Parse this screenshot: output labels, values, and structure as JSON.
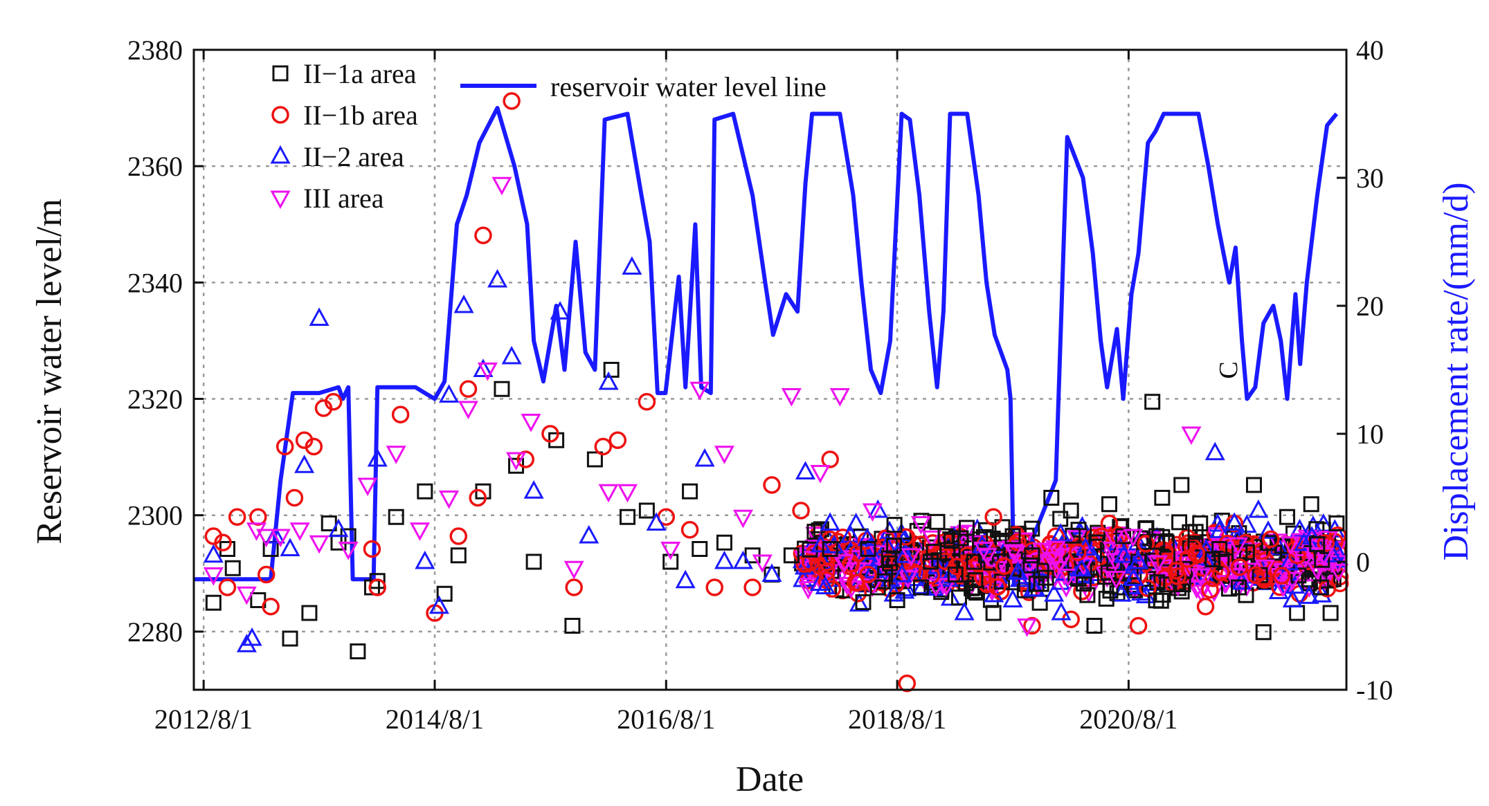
{
  "chart_data": {
    "type": "scatter+line",
    "xlabel": "Date",
    "ylabel_left": "Reservoir water level/m",
    "ylabel_right": "Displacement rate/(mm/d)",
    "annotation": "C",
    "x_axis": {
      "start": "2012-07-01",
      "end": "2022-06-20",
      "ticks": [
        "2012-08-01",
        "2014-08-01",
        "2016-08-01",
        "2018-08-01",
        "2020-08-01"
      ],
      "tick_labels": [
        "2012/8/1",
        "2014/8/1",
        "2016/8/1",
        "2018/8/1",
        "2020/8/1"
      ]
    },
    "y_left": {
      "min": 2270,
      "max": 2380,
      "ticks": [
        2280,
        2300,
        2320,
        2340,
        2360,
        2380
      ]
    },
    "y_right": {
      "min": -10,
      "max": 40,
      "ticks": [
        -10,
        0,
        10,
        20,
        30,
        40
      ]
    },
    "grid": true,
    "legend_position": "top-left",
    "line_series": {
      "name": "reservoir water level line",
      "color": "#1a1aff",
      "axis": "left",
      "points": [
        [
          "2012-07-01",
          2289
        ],
        [
          "2013-03-01",
          2289
        ],
        [
          "2013-04-01",
          2306
        ],
        [
          "2013-05-10",
          2321
        ],
        [
          "2013-08-01",
          2321
        ],
        [
          "2013-10-01",
          2322
        ],
        [
          "2013-10-15",
          2320
        ],
        [
          "2013-11-01",
          2322
        ],
        [
          "2013-11-15",
          2289
        ],
        [
          "2014-01-20",
          2289
        ],
        [
          "2014-02-01",
          2322
        ],
        [
          "2014-06-01",
          2322
        ],
        [
          "2014-07-01",
          2321
        ],
        [
          "2014-08-01",
          2320
        ],
        [
          "2014-09-01",
          2323
        ],
        [
          "2014-10-10",
          2350
        ],
        [
          "2014-11-10",
          2355
        ],
        [
          "2014-12-20",
          2364
        ],
        [
          "2015-02-15",
          2370
        ],
        [
          "2015-04-10",
          2360
        ],
        [
          "2015-05-20",
          2350
        ],
        [
          "2015-06-10",
          2330
        ],
        [
          "2015-07-10",
          2323
        ],
        [
          "2015-08-20",
          2336
        ],
        [
          "2015-09-15",
          2325
        ],
        [
          "2015-10-20",
          2347
        ],
        [
          "2015-11-20",
          2328
        ],
        [
          "2015-12-20",
          2325
        ],
        [
          "2016-01-20",
          2368
        ],
        [
          "2016-04-01",
          2369
        ],
        [
          "2016-05-15",
          2355
        ],
        [
          "2016-06-10",
          2347
        ],
        [
          "2016-07-05",
          2321
        ],
        [
          "2016-07-30",
          2321
        ],
        [
          "2016-09-10",
          2341
        ],
        [
          "2016-10-01",
          2322
        ],
        [
          "2016-11-01",
          2350
        ],
        [
          "2016-11-20",
          2322
        ],
        [
          "2016-12-20",
          2321
        ],
        [
          "2017-01-01",
          2368
        ],
        [
          "2017-03-01",
          2369
        ],
        [
          "2017-05-01",
          2355
        ],
        [
          "2017-06-10",
          2340
        ],
        [
          "2017-07-05",
          2331
        ],
        [
          "2017-08-15",
          2338
        ],
        [
          "2017-09-20",
          2335
        ],
        [
          "2017-10-15",
          2357
        ],
        [
          "2017-11-05",
          2369
        ],
        [
          "2018-02-01",
          2369
        ],
        [
          "2018-03-15",
          2355
        ],
        [
          "2018-04-10",
          2340
        ],
        [
          "2018-05-10",
          2325
        ],
        [
          "2018-06-10",
          2321
        ],
        [
          "2018-07-10",
          2330
        ],
        [
          "2018-08-15",
          2369
        ],
        [
          "2018-09-10",
          2368
        ],
        [
          "2018-10-10",
          2355
        ],
        [
          "2018-11-10",
          2335
        ],
        [
          "2018-12-05",
          2322
        ],
        [
          "2018-12-25",
          2335
        ],
        [
          "2019-01-15",
          2369
        ],
        [
          "2019-03-10",
          2369
        ],
        [
          "2019-04-15",
          2355
        ],
        [
          "2019-05-10",
          2340
        ],
        [
          "2019-06-05",
          2331
        ],
        [
          "2019-06-25",
          2328
        ],
        [
          "2019-07-15",
          2325
        ],
        [
          "2019-07-25",
          2320
        ],
        [
          "2019-08-05",
          2288
        ],
        [
          "2019-12-15",
          2306
        ],
        [
          "2020-01-20",
          2365
        ],
        [
          "2020-03-10",
          2358
        ],
        [
          "2020-04-10",
          2345
        ],
        [
          "2020-05-05",
          2330
        ],
        [
          "2020-05-25",
          2322
        ],
        [
          "2020-06-25",
          2332
        ],
        [
          "2020-07-15",
          2320
        ],
        [
          "2020-08-10",
          2338
        ],
        [
          "2020-09-01",
          2345
        ],
        [
          "2020-10-01",
          2364
        ],
        [
          "2020-10-25",
          2366
        ],
        [
          "2020-11-20",
          2369
        ],
        [
          "2021-03-10",
          2369
        ],
        [
          "2021-04-10",
          2360
        ],
        [
          "2021-05-10",
          2350
        ],
        [
          "2021-06-15",
          2340
        ],
        [
          "2021-07-05",
          2346
        ],
        [
          "2021-07-25",
          2330
        ],
        [
          "2021-08-10",
          2320
        ],
        [
          "2021-09-05",
          2322
        ],
        [
          "2021-10-01",
          2333
        ],
        [
          "2021-11-01",
          2336
        ],
        [
          "2021-11-25",
          2330
        ],
        [
          "2021-12-15",
          2320
        ],
        [
          "2022-01-10",
          2338
        ],
        [
          "2022-01-25",
          2326
        ],
        [
          "2022-02-15",
          2340
        ],
        [
          "2022-03-20",
          2355
        ],
        [
          "2022-04-20",
          2367
        ],
        [
          "2022-05-20",
          2369
        ]
      ]
    },
    "scatter_series": [
      {
        "name": "II−1a area",
        "marker": "square",
        "color": "#111111",
        "axis": "right",
        "points": [
          [
            "2012-09-01",
            -3.2
          ],
          [
            "2012-10-15",
            1
          ],
          [
            "2012-11-01",
            -0.5
          ],
          [
            "2013-01-20",
            -3
          ],
          [
            "2013-03-01",
            1
          ],
          [
            "2013-05-01",
            -6
          ],
          [
            "2013-07-01",
            -4
          ],
          [
            "2013-09-01",
            3
          ],
          [
            "2013-10-01",
            1.5
          ],
          [
            "2013-11-01",
            2
          ],
          [
            "2013-12-01",
            -7
          ],
          [
            "2014-01-15",
            -2
          ],
          [
            "2014-02-01",
            -1.5
          ],
          [
            "2014-04-01",
            3.5
          ],
          [
            "2014-07-01",
            5.5
          ],
          [
            "2014-09-01",
            -2.5
          ],
          [
            "2014-10-15",
            0.5
          ],
          [
            "2015-01-01",
            5.5
          ],
          [
            "2015-03-01",
            13.5
          ],
          [
            "2015-04-15",
            7.5
          ],
          [
            "2015-06-10",
            0
          ],
          [
            "2015-08-20",
            9.5
          ],
          [
            "2015-10-10",
            -5
          ],
          [
            "2015-12-20",
            8
          ],
          [
            "2016-02-10",
            15
          ],
          [
            "2016-04-01",
            3.5
          ],
          [
            "2016-06-01",
            4
          ],
          [
            "2016-08-15",
            0
          ],
          [
            "2016-10-15",
            5.5
          ],
          [
            "2016-11-15",
            1
          ],
          [
            "2017-02-01",
            1.5
          ],
          [
            "2017-05-01",
            0.5
          ],
          [
            "2017-07-01",
            -1
          ],
          [
            "2017-09-01",
            0.5
          ],
          [
            "2018-01-01",
            1
          ],
          [
            "2018-05-01",
            1
          ],
          [
            "2018-06-01",
            -2
          ],
          [
            "2018-08-01",
            -3
          ],
          [
            "2018-10-15",
            -2
          ],
          [
            "2018-11-15",
            0
          ],
          [
            "2019-01-01",
            2
          ],
          [
            "2019-02-01",
            -1
          ],
          [
            "2019-04-01",
            0
          ],
          [
            "2019-06-01",
            -4
          ],
          [
            "2019-08-01",
            2
          ],
          [
            "2019-10-01",
            0.5
          ],
          [
            "2019-12-01",
            5
          ],
          [
            "2020-02-01",
            4
          ],
          [
            "2020-04-15",
            -5
          ],
          [
            "2020-06-01",
            4.5
          ],
          [
            "2020-07-15",
            2
          ],
          [
            "2020-09-01",
            0
          ],
          [
            "2020-10-15",
            12.5
          ],
          [
            "2020-11-15",
            5
          ],
          [
            "2021-01-15",
            6
          ],
          [
            "2021-03-15",
            3
          ],
          [
            "2021-05-15",
            1
          ],
          [
            "2021-07-15",
            -2
          ],
          [
            "2021-09-01",
            6
          ],
          [
            "2021-10-01",
            -5.5
          ],
          [
            "2021-12-15",
            3.5
          ],
          [
            "2022-01-15",
            -4
          ],
          [
            "2022-03-01",
            4.5
          ],
          [
            "2022-04-01",
            -2
          ],
          [
            "2022-05-01",
            -4
          ],
          [
            "2022-05-20",
            3
          ]
        ]
      },
      {
        "name": "II−1b area",
        "marker": "circle",
        "color": "#ee1111",
        "axis": "right",
        "points": [
          [
            "2012-09-01",
            2
          ],
          [
            "2012-10-01",
            1.5
          ],
          [
            "2012-10-15",
            -2
          ],
          [
            "2012-11-15",
            3.5
          ],
          [
            "2013-01-20",
            3.5
          ],
          [
            "2013-02-15",
            -1
          ],
          [
            "2013-03-01",
            -3.5
          ],
          [
            "2013-04-15",
            9
          ],
          [
            "2013-05-15",
            5
          ],
          [
            "2013-06-15",
            9.5
          ],
          [
            "2013-07-15",
            9
          ],
          [
            "2013-08-15",
            12
          ],
          [
            "2013-09-15",
            12.5
          ],
          [
            "2014-01-15",
            1
          ],
          [
            "2014-02-01",
            -2
          ],
          [
            "2014-04-15",
            11.5
          ],
          [
            "2014-08-01",
            -4
          ],
          [
            "2014-10-15",
            2
          ],
          [
            "2014-11-15",
            13.5
          ],
          [
            "2014-12-15",
            5
          ],
          [
            "2015-01-01",
            25.5
          ],
          [
            "2015-04-01",
            36
          ],
          [
            "2015-05-15",
            8
          ],
          [
            "2015-08-01",
            10
          ],
          [
            "2015-10-15",
            -2
          ],
          [
            "2016-01-15",
            9
          ],
          [
            "2016-03-01",
            9.5
          ],
          [
            "2016-06-01",
            12.5
          ],
          [
            "2016-08-01",
            3.5
          ],
          [
            "2016-10-15",
            2.5
          ],
          [
            "2017-01-01",
            -2
          ],
          [
            "2017-05-01",
            -2
          ],
          [
            "2017-07-01",
            6
          ],
          [
            "2017-10-01",
            4
          ],
          [
            "2018-01-01",
            8
          ],
          [
            "2018-05-01",
            -1
          ],
          [
            "2018-09-01",
            -9.5
          ],
          [
            "2019-06-01",
            3.5
          ],
          [
            "2019-10-01",
            -5
          ],
          [
            "2020-02-01",
            -4.5
          ],
          [
            "2020-06-01",
            3
          ],
          [
            "2020-09-01",
            -5
          ],
          [
            "2021-04-01",
            -3.5
          ],
          [
            "2021-07-01",
            3
          ]
        ]
      },
      {
        "name": "II−2 area",
        "marker": "triangle-up",
        "color": "#1a1aff",
        "axis": "right",
        "points": [
          [
            "2012-09-01",
            0.5
          ],
          [
            "2012-12-15",
            -6.5
          ],
          [
            "2013-01-01",
            -6
          ],
          [
            "2013-03-15",
            2
          ],
          [
            "2013-05-01",
            1
          ],
          [
            "2013-06-15",
            7.5
          ],
          [
            "2013-08-01",
            19
          ],
          [
            "2013-10-01",
            2.5
          ],
          [
            "2014-02-01",
            8
          ],
          [
            "2014-07-01",
            0
          ],
          [
            "2014-08-15",
            -3.5
          ],
          [
            "2014-09-15",
            13
          ],
          [
            "2014-11-01",
            20
          ],
          [
            "2015-01-01",
            15
          ],
          [
            "2015-02-15",
            22
          ],
          [
            "2015-04-01",
            16
          ],
          [
            "2015-06-10",
            5.5
          ],
          [
            "2015-09-01",
            19.5
          ],
          [
            "2015-12-01",
            2
          ],
          [
            "2016-02-01",
            14
          ],
          [
            "2016-04-15",
            23
          ],
          [
            "2016-07-01",
            3
          ],
          [
            "2016-10-01",
            -1.5
          ],
          [
            "2016-12-01",
            8
          ],
          [
            "2017-02-01",
            0
          ],
          [
            "2017-04-01",
            0
          ],
          [
            "2017-07-01",
            -1
          ],
          [
            "2017-10-15",
            7
          ],
          [
            "2018-01-01",
            3
          ],
          [
            "2018-06-01",
            4
          ],
          [
            "2019-03-01",
            -4
          ],
          [
            "2019-08-01",
            -3
          ],
          [
            "2020-01-01",
            -4
          ],
          [
            "2020-09-01",
            0
          ],
          [
            "2021-05-01",
            8.5
          ],
          [
            "2021-07-01",
            3
          ],
          [
            "2021-09-15",
            4
          ],
          [
            "2022-01-01",
            -3
          ]
        ]
      },
      {
        "name": "III area",
        "marker": "triangle-down",
        "color": "#ee11ee",
        "axis": "right",
        "points": [
          [
            "2012-09-01",
            -1
          ],
          [
            "2012-12-15",
            -2.5
          ],
          [
            "2013-01-15",
            2.5
          ],
          [
            "2013-02-15",
            2
          ],
          [
            "2013-04-01",
            2
          ],
          [
            "2013-06-01",
            2.5
          ],
          [
            "2013-08-01",
            1.5
          ],
          [
            "2013-11-01",
            1
          ],
          [
            "2014-01-01",
            6
          ],
          [
            "2014-04-01",
            8.5
          ],
          [
            "2014-06-15",
            2.5
          ],
          [
            "2014-09-15",
            5
          ],
          [
            "2014-11-15",
            12
          ],
          [
            "2015-01-15",
            15
          ],
          [
            "2015-03-01",
            29.5
          ],
          [
            "2015-04-15",
            8
          ],
          [
            "2015-06-01",
            11
          ],
          [
            "2015-10-15",
            -0.5
          ],
          [
            "2016-02-01",
            5.5
          ],
          [
            "2016-04-01",
            5.5
          ],
          [
            "2016-08-15",
            1
          ],
          [
            "2016-11-15",
            13.5
          ],
          [
            "2017-02-01",
            8.5
          ],
          [
            "2017-04-01",
            3.5
          ],
          [
            "2017-06-01",
            0
          ],
          [
            "2017-09-01",
            13
          ],
          [
            "2017-12-01",
            7
          ],
          [
            "2018-02-01",
            13
          ],
          [
            "2018-05-15",
            4
          ],
          [
            "2018-10-15",
            3
          ],
          [
            "2019-05-01",
            1
          ],
          [
            "2019-09-15",
            -5
          ],
          [
            "2020-08-15",
            2
          ],
          [
            "2021-02-15",
            10
          ]
        ]
      }
    ],
    "dense_cluster": {
      "x_start": "2017-10-01",
      "x_end": "2022-05-31",
      "y_range": [
        -3.5,
        3.5
      ]
    }
  }
}
